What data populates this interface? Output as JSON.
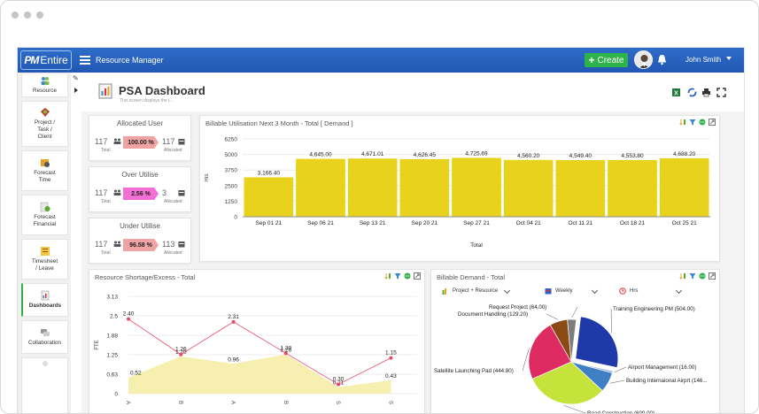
{
  "window": {
    "dots": 3
  },
  "topbar": {
    "logo_pm": "PM",
    "logo_entire": "Entire",
    "app_title": "Resource Manager",
    "create_label": "Create",
    "user_name": "John Smith"
  },
  "sidebar": {
    "items": [
      {
        "label": "Resource"
      },
      {
        "label": "Project /\nTask /\nClient"
      },
      {
        "label": "Forecast\nTime"
      },
      {
        "label": "Forecast\nFinancial"
      },
      {
        "label": "Timesheet\n/ Leave"
      },
      {
        "label": "Dashboards"
      },
      {
        "label": "Collaboration"
      }
    ]
  },
  "page": {
    "title": "PSA Dashboard",
    "subtitle": "This screen displays the i..."
  },
  "kpis": [
    {
      "title": "Allocated User",
      "left_value": "117",
      "left_label": "Total",
      "pill": "100.00 %",
      "pill_color": "#f0a3a3",
      "right_value": "117",
      "right_label": "Allocated"
    },
    {
      "title": "Over Utilise",
      "left_value": "117",
      "left_label": "Total",
      "pill": "2.56 %",
      "pill_color": "#f36fd5",
      "right_value": "3",
      "right_label": "Allocated"
    },
    {
      "title": "Under Utilise",
      "left_value": "117",
      "left_label": "Total",
      "pill": "96.58 %",
      "pill_color": "#f0a3a3",
      "right_value": "113",
      "right_label": "Allocated"
    }
  ],
  "colors": {
    "topbar": "#2a63c2",
    "create": "#2db34a",
    "bar": "#e8d21c",
    "line": "#e84b6a",
    "area": "#f7efb0"
  },
  "chart_data": [
    {
      "type": "bar",
      "title": "Billable Utilisation Next 3 Month - Total [ Demand ]",
      "xlabel": "Total",
      "ylabel": "Hrs",
      "ylim": [
        0,
        6250
      ],
      "yticks": [
        "6250",
        "5000",
        "3750",
        "2500",
        "1250",
        "0"
      ],
      "categories": [
        "Sep 01 21",
        "Sep 06 21",
        "Sep 13 21",
        "Sep 20 21",
        "Sep 27 21",
        "Oct 04 21",
        "Oct 11 21",
        "Oct 18 21",
        "Oct 25 21"
      ],
      "values": [
        3166.4,
        4645.0,
        4671.01,
        4626.45,
        4725.69,
        4560.2,
        4549.4,
        4553.8,
        4688.2
      ],
      "labels": [
        "3,166.40",
        "4,645.00",
        "4,671.01",
        "4,626.45",
        "4,725.69",
        "4,560.20",
        "4,549.40",
        "4,553.80",
        "4,688.20"
      ]
    },
    {
      "type": "line",
      "title": "Resource Shortage/Excess - Total",
      "ylabel": "FTE",
      "ylim": [
        0,
        3.13
      ],
      "yticks": [
        "3.13",
        "2.5",
        "1.88",
        "1.25",
        "0.63",
        "0"
      ],
      "xticks": [
        "A",
        "B",
        "A",
        "B",
        "S",
        "S"
      ],
      "series": [
        {
          "name": "Shortage",
          "values": [
            2.4,
            1.26,
            2.31,
            1.3,
            0.3,
            1.15
          ],
          "labels": [
            "2.40",
            "1.26",
            "2.31",
            "1.30",
            "0.30",
            "1.15"
          ]
        },
        {
          "name": "Excess",
          "values": [
            0.52,
            1.2,
            0.96,
            1.26,
            0.21,
            0.43
          ],
          "labels": [
            "0.52",
            "1.20",
            "0.96",
            "1.26",
            "0.21",
            "0.43"
          ]
        }
      ]
    },
    {
      "type": "pie",
      "title": "Billable Demand - Total",
      "filters": [
        "Project + Resource",
        "Weekly",
        "Hrs"
      ],
      "slices": [
        {
          "label": "Training Engineering PM (504.00)",
          "value": 504.0,
          "color": "#1f3aa8"
        },
        {
          "label": "Airport Management (16.00)",
          "value": 16.0,
          "color": "#9db6d9"
        },
        {
          "label": "Building Internaional Airprt (146...",
          "value": 146.0,
          "color": "#3f7fc3"
        },
        {
          "label": "Road Construction (600.00)",
          "value": 600.0,
          "color": "#c6e33c"
        },
        {
          "label": "Satellite Launching Pad (444.80)",
          "value": 444.8,
          "color": "#de2b61"
        },
        {
          "label": "Document Handling (129.20)",
          "value": 129.2,
          "color": "#8b4a14"
        },
        {
          "label": "Request Project (64.00)",
          "value": 64.0,
          "color": "#7d7d7d"
        }
      ]
    }
  ]
}
